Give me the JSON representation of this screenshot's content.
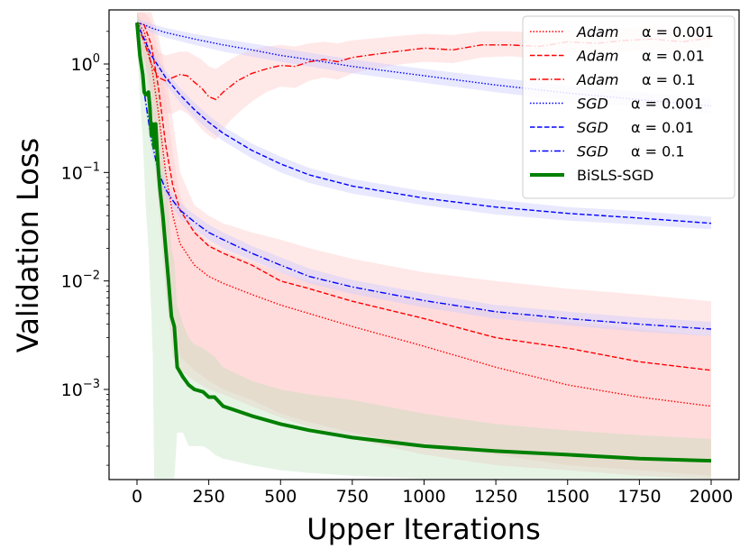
{
  "chart_data": {
    "type": "line",
    "title": "",
    "xlabel": "Upper Iterations",
    "ylabel": "Validation Loss",
    "xscale": "linear",
    "yscale": "log",
    "xlim": [
      -100,
      2100
    ],
    "ylim": [
      0.00015,
      3.0
    ],
    "x_ticks": [
      0,
      250,
      500,
      750,
      1000,
      1250,
      1500,
      1750,
      2000
    ],
    "x_tick_labels": [
      "0",
      "250",
      "500",
      "750",
      "1000",
      "1250",
      "1500",
      "1750",
      "2000"
    ],
    "y_ticks": [
      {
        "value": 1,
        "base": "10",
        "exp": "0"
      },
      {
        "value": 0.1,
        "base": "10",
        "exp": "−1"
      },
      {
        "value": 0.01,
        "base": "10",
        "exp": "−2"
      },
      {
        "value": 0.001,
        "base": "10",
        "exp": "−3"
      }
    ],
    "legend_position": "top-right",
    "colors": {
      "adam": "#ff0000",
      "sgd": "#0000ff",
      "bisls": "#008000",
      "adam_band": "#ffcccc",
      "sgd_band": "#ccccff",
      "bisls_band": "#b8e0b8"
    },
    "series": [
      {
        "id": "adam-0001",
        "name": "Adam",
        "alpha": "α = 0.001",
        "color": "#ff0000",
        "dash": "dotted",
        "width": 1.4,
        "x": [
          0,
          25,
          50,
          75,
          100,
          125,
          150,
          200,
          250,
          300,
          400,
          500,
          600,
          750,
          1000,
          1250,
          1500,
          1750,
          2000
        ],
        "y": [
          2.4,
          2.0,
          1.0,
          0.35,
          0.1,
          0.04,
          0.022,
          0.014,
          0.011,
          0.0095,
          0.0075,
          0.006,
          0.005,
          0.0038,
          0.0025,
          0.0016,
          0.0011,
          0.00085,
          0.0007
        ],
        "band_low": [
          1.5,
          1.0,
          0.3,
          0.05,
          0.008,
          0.002,
          0.0015,
          0.0012,
          0.001,
          0.0009,
          0.0007,
          0.00055,
          0.00045,
          0.00035,
          0.00025,
          0.0002,
          0.00018,
          0.00016,
          0.00015
        ],
        "band_high": [
          3.0,
          3.0,
          2.5,
          1.3,
          0.5,
          0.15,
          0.06,
          0.03,
          0.022,
          0.019,
          0.015,
          0.012,
          0.01,
          0.0085,
          0.0065,
          0.0052,
          0.0042,
          0.0036,
          0.0031
        ]
      },
      {
        "id": "adam-001",
        "name": "Adam",
        "alpha": "α = 0.01",
        "color": "#ff0000",
        "dash": "dashed",
        "width": 1.4,
        "x": [
          0,
          25,
          50,
          75,
          100,
          125,
          150,
          200,
          250,
          300,
          400,
          500,
          600,
          750,
          1000,
          1250,
          1500,
          1750,
          2000
        ],
        "y": [
          2.4,
          2.3,
          1.5,
          0.6,
          0.18,
          0.075,
          0.045,
          0.028,
          0.021,
          0.018,
          0.014,
          0.01,
          0.0085,
          0.0065,
          0.0045,
          0.003,
          0.0024,
          0.0018,
          0.0015
        ],
        "band_low": [
          1.5,
          1.2,
          0.5,
          0.1,
          0.015,
          0.004,
          0.002,
          0.0015,
          0.0012,
          0.001,
          0.0008,
          0.0006,
          0.0005,
          0.0004,
          0.0003,
          0.00025,
          0.0002,
          0.00018,
          0.00016
        ],
        "band_high": [
          3.0,
          3.0,
          3.0,
          1.8,
          0.8,
          0.3,
          0.1,
          0.05,
          0.04,
          0.034,
          0.028,
          0.024,
          0.02,
          0.016,
          0.012,
          0.01,
          0.0085,
          0.0075,
          0.0065
        ]
      },
      {
        "id": "adam-01",
        "name": "Adam",
        "alpha": "α = 0.1",
        "color": "#ff0000",
        "dash": "dashdot",
        "width": 1.4,
        "x": [
          0,
          25,
          50,
          75,
          100,
          125,
          150,
          175,
          200,
          225,
          250,
          275,
          300,
          325,
          350,
          400,
          450,
          500,
          550,
          600,
          650,
          700,
          750,
          800,
          900,
          1000,
          1100,
          1200,
          1300,
          1400,
          1500,
          1600,
          1700,
          1800,
          1900,
          2000
        ],
        "y": [
          2.4,
          1.6,
          1.0,
          0.75,
          0.7,
          0.75,
          0.8,
          0.78,
          0.68,
          0.6,
          0.5,
          0.47,
          0.55,
          0.62,
          0.7,
          0.82,
          0.9,
          0.97,
          0.95,
          1.05,
          1.1,
          1.05,
          1.15,
          1.2,
          1.3,
          1.4,
          1.35,
          1.5,
          1.5,
          1.45,
          1.6,
          1.55,
          1.65,
          1.7,
          1.6,
          1.75
        ],
        "band_low": [
          1.8,
          1.1,
          0.6,
          0.4,
          0.35,
          0.35,
          0.38,
          0.35,
          0.3,
          0.25,
          0.22,
          0.2,
          0.25,
          0.3,
          0.35,
          0.45,
          0.55,
          0.62,
          0.6,
          0.7,
          0.75,
          0.72,
          0.82,
          0.88,
          0.98,
          1.05,
          1.02,
          1.15,
          1.18,
          1.12,
          1.28,
          1.22,
          1.3,
          1.35,
          1.28,
          1.4
        ],
        "band_high": [
          3.0,
          2.3,
          1.6,
          1.3,
          1.2,
          1.25,
          1.3,
          1.3,
          1.2,
          1.1,
          0.95,
          0.9,
          1.0,
          1.1,
          1.2,
          1.35,
          1.45,
          1.5,
          1.45,
          1.55,
          1.6,
          1.55,
          1.65,
          1.7,
          1.8,
          1.9,
          1.85,
          2.0,
          2.0,
          1.95,
          2.1,
          2.05,
          2.15,
          2.2,
          2.1,
          2.25
        ]
      },
      {
        "id": "sgd-0001",
        "name": "SGD",
        "alpha": "α = 0.001",
        "color": "#0000ff",
        "dash": "dotted",
        "width": 1.4,
        "x": [
          0,
          25,
          50,
          100,
          200,
          300,
          400,
          500,
          600,
          750,
          1000,
          1250,
          1500,
          1750,
          2000
        ],
        "y": [
          2.4,
          2.3,
          2.15,
          1.95,
          1.7,
          1.5,
          1.35,
          1.2,
          1.1,
          0.95,
          0.78,
          0.64,
          0.54,
          0.47,
          0.41
        ],
        "band_low": [
          2.2,
          2.1,
          1.95,
          1.75,
          1.5,
          1.3,
          1.17,
          1.05,
          0.95,
          0.82,
          0.67,
          0.55,
          0.46,
          0.4,
          0.35
        ],
        "band_high": [
          2.6,
          2.5,
          2.35,
          2.15,
          1.9,
          1.7,
          1.55,
          1.4,
          1.27,
          1.1,
          0.9,
          0.75,
          0.63,
          0.55,
          0.48
        ]
      },
      {
        "id": "sgd-001",
        "name": "SGD",
        "alpha": "α = 0.01",
        "color": "#0000ff",
        "dash": "dashed",
        "width": 1.4,
        "x": [
          0,
          25,
          50,
          75,
          100,
          150,
          200,
          250,
          300,
          400,
          500,
          600,
          750,
          1000,
          1250,
          1500,
          1750,
          2000
        ],
        "y": [
          2.4,
          1.7,
          1.2,
          0.95,
          0.75,
          0.52,
          0.38,
          0.29,
          0.23,
          0.16,
          0.12,
          0.095,
          0.075,
          0.058,
          0.048,
          0.042,
          0.038,
          0.034
        ],
        "band_low": [
          2.2,
          1.5,
          1.05,
          0.83,
          0.65,
          0.44,
          0.32,
          0.245,
          0.195,
          0.135,
          0.1,
          0.08,
          0.064,
          0.05,
          0.041,
          0.036,
          0.033,
          0.03
        ],
        "band_high": [
          2.6,
          1.9,
          1.35,
          1.08,
          0.86,
          0.6,
          0.44,
          0.335,
          0.265,
          0.185,
          0.14,
          0.11,
          0.087,
          0.067,
          0.056,
          0.048,
          0.044,
          0.039
        ]
      },
      {
        "id": "sgd-01",
        "name": "SGD",
        "alpha": "α = 0.1",
        "color": "#0000ff",
        "dash": "dashdot",
        "width": 1.4,
        "x": [
          0,
          25,
          50,
          75,
          100,
          125,
          150,
          200,
          250,
          300,
          400,
          500,
          600,
          750,
          1000,
          1250,
          1500,
          1750,
          2000
        ],
        "y": [
          2.4,
          0.55,
          0.2,
          0.1,
          0.07,
          0.055,
          0.045,
          0.035,
          0.028,
          0.024,
          0.018,
          0.014,
          0.011,
          0.0088,
          0.0066,
          0.0052,
          0.0045,
          0.004,
          0.0036
        ],
        "band_low": [
          2.0,
          0.45,
          0.16,
          0.085,
          0.06,
          0.047,
          0.038,
          0.03,
          0.024,
          0.02,
          0.0155,
          0.012,
          0.0095,
          0.0076,
          0.0057,
          0.0045,
          0.0039,
          0.0034,
          0.0031
        ],
        "band_high": [
          2.8,
          0.65,
          0.25,
          0.12,
          0.082,
          0.064,
          0.052,
          0.041,
          0.033,
          0.028,
          0.021,
          0.0165,
          0.013,
          0.0102,
          0.0077,
          0.006,
          0.0052,
          0.0046,
          0.0042
        ]
      },
      {
        "id": "bisls-sgd",
        "name": "BiSLS-SGD",
        "alpha": "",
        "color": "#008000",
        "dash": "solid",
        "width": 4,
        "x": [
          0,
          10,
          20,
          25,
          30,
          40,
          45,
          50,
          55,
          60,
          65,
          70,
          75,
          80,
          90,
          100,
          110,
          120,
          130,
          140,
          160,
          180,
          200,
          230,
          250,
          270,
          300,
          400,
          500,
          600,
          750,
          1000,
          1250,
          1500,
          1750,
          2000
        ],
        "y": [
          2.4,
          1.2,
          0.8,
          0.55,
          0.52,
          0.55,
          0.4,
          0.22,
          0.28,
          0.17,
          0.28,
          0.16,
          0.1,
          0.07,
          0.04,
          0.02,
          0.01,
          0.0047,
          0.0038,
          0.0016,
          0.0013,
          0.0011,
          0.001,
          0.00095,
          0.00085,
          0.00085,
          0.0007,
          0.00057,
          0.00048,
          0.00042,
          0.00036,
          0.0003,
          0.00027,
          0.00025,
          0.00023,
          0.00022
        ],
        "band_low": [
          1.5,
          0.5,
          0.2,
          0.1,
          0.05,
          0.02,
          0.01,
          0.005,
          0.002,
          0.00015,
          0.00015,
          0.00015,
          0.00015,
          0.00015,
          0.00015,
          0.00015,
          0.00015,
          0.00015,
          0.00015,
          0.0004,
          0.0004,
          0.0003,
          0.0003,
          0.0003,
          0.00028,
          0.00025,
          0.00023,
          0.0002,
          0.00018,
          0.00017,
          0.00016,
          0.00015,
          0.00015,
          0.00015,
          0.00015,
          0.00015
        ],
        "band_high": [
          3.0,
          2.5,
          2.0,
          1.6,
          1.5,
          1.5,
          1.3,
          1.0,
          1.1,
          0.9,
          1.0,
          0.85,
          0.6,
          0.4,
          0.2,
          0.1,
          0.05,
          0.02,
          0.015,
          0.006,
          0.004,
          0.003,
          0.0026,
          0.0024,
          0.0022,
          0.002,
          0.0016,
          0.0012,
          0.001,
          0.0009,
          0.0008,
          0.0006,
          0.00048,
          0.00042,
          0.00038,
          0.00035
        ]
      }
    ]
  }
}
